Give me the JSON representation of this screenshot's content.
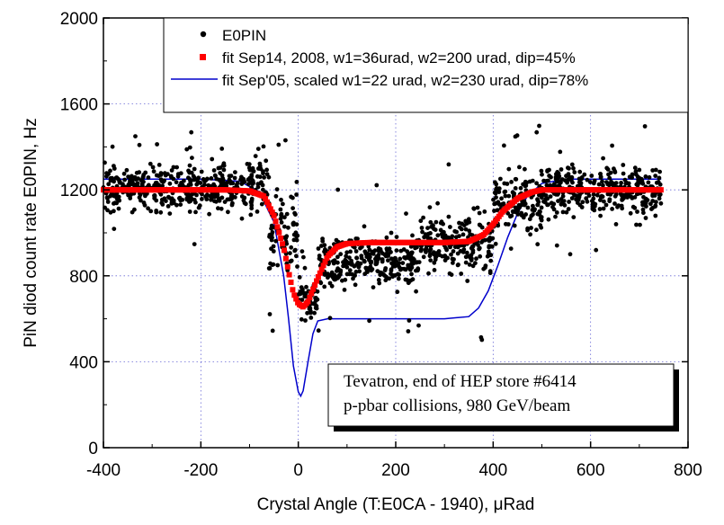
{
  "chart_data": {
    "type": "scatter",
    "title": "",
    "xlabel": "Crystal Angle (T:E0CA - 1940), μRad",
    "ylabel": "PiN diod count rate E0PIN, Hz",
    "xlim": [
      -400,
      800
    ],
    "ylim": [
      0,
      2000
    ],
    "x_ticks": [
      -400,
      -200,
      0,
      200,
      400,
      600,
      800
    ],
    "y_ticks": [
      0,
      400,
      800,
      1200,
      1600,
      2000
    ],
    "x_tick_labels": [
      "-400",
      "-200",
      "0",
      "200",
      "400",
      "600",
      "800"
    ],
    "y_tick_labels": [
      "0",
      "400",
      "800",
      "1200",
      "1600",
      "2000"
    ],
    "grid": "dotted",
    "legend_position": "top-right",
    "series": [
      {
        "name": "E0PIN",
        "kind": "scatter",
        "color": "#000000",
        "x_range": [
          -400,
          745
        ],
        "segments": [
          {
            "x_from": -400,
            "x_to": -120,
            "mean": 1200,
            "spread": 90
          },
          {
            "x_from": -120,
            "x_to": -60,
            "mean": 1230,
            "spread": 140
          },
          {
            "x_from": -60,
            "x_to": 0,
            "mean": 1000,
            "spread": 180
          },
          {
            "x_from": 0,
            "x_to": 40,
            "mean": 700,
            "spread": 90
          },
          {
            "x_from": 40,
            "x_to": 100,
            "mean": 860,
            "spread": 120
          },
          {
            "x_from": 100,
            "x_to": 250,
            "mean": 870,
            "spread": 120
          },
          {
            "x_from": 250,
            "x_to": 400,
            "mean": 960,
            "spread": 150
          },
          {
            "x_from": 400,
            "x_to": 500,
            "mean": 1140,
            "spread": 140
          },
          {
            "x_from": 500,
            "x_to": 745,
            "mean": 1200,
            "spread": 110
          }
        ]
      },
      {
        "name": "fit Sep14, 2008, w1=36urad, w2=200 urad, dip=45%",
        "kind": "square-markers",
        "color": "#ff0000",
        "x": [
          -400,
          -250,
          -150,
          -100,
          -70,
          -50,
          -30,
          -20,
          -10,
          0,
          10,
          20,
          40,
          60,
          80,
          100,
          150,
          200,
          300,
          350,
          380,
          400,
          420,
          450,
          480,
          500,
          550,
          600,
          700,
          745
        ],
        "y": [
          1200,
          1200,
          1200,
          1195,
          1170,
          1080,
          930,
          820,
          720,
          670,
          655,
          680,
          790,
          890,
          935,
          950,
          955,
          955,
          955,
          960,
          990,
          1040,
          1100,
          1160,
          1190,
          1200,
          1200,
          1200,
          1200,
          1200
        ]
      },
      {
        "name": "fit Sep'05, scaled w1=22 urad, w2=230 urad, dip=78%",
        "kind": "line",
        "color": "#0000cc",
        "x": [
          -400,
          -200,
          -120,
          -80,
          -50,
          -30,
          -20,
          -10,
          0,
          5,
          10,
          20,
          30,
          40,
          60,
          100,
          200,
          300,
          350,
          370,
          390,
          410,
          430,
          450,
          470,
          500,
          550,
          600,
          700,
          745
        ],
        "y": [
          1250,
          1250,
          1240,
          1190,
          1050,
          800,
          600,
          380,
          260,
          240,
          265,
          400,
          530,
          590,
          600,
          600,
          600,
          600,
          610,
          650,
          730,
          850,
          980,
          1090,
          1170,
          1230,
          1250,
          1250,
          1250,
          1250
        ]
      }
    ],
    "annotation": {
      "lines": [
        "Tevatron, end of HEP store #6414",
        "p-pbar collisions, 980 GeV/beam"
      ]
    }
  }
}
